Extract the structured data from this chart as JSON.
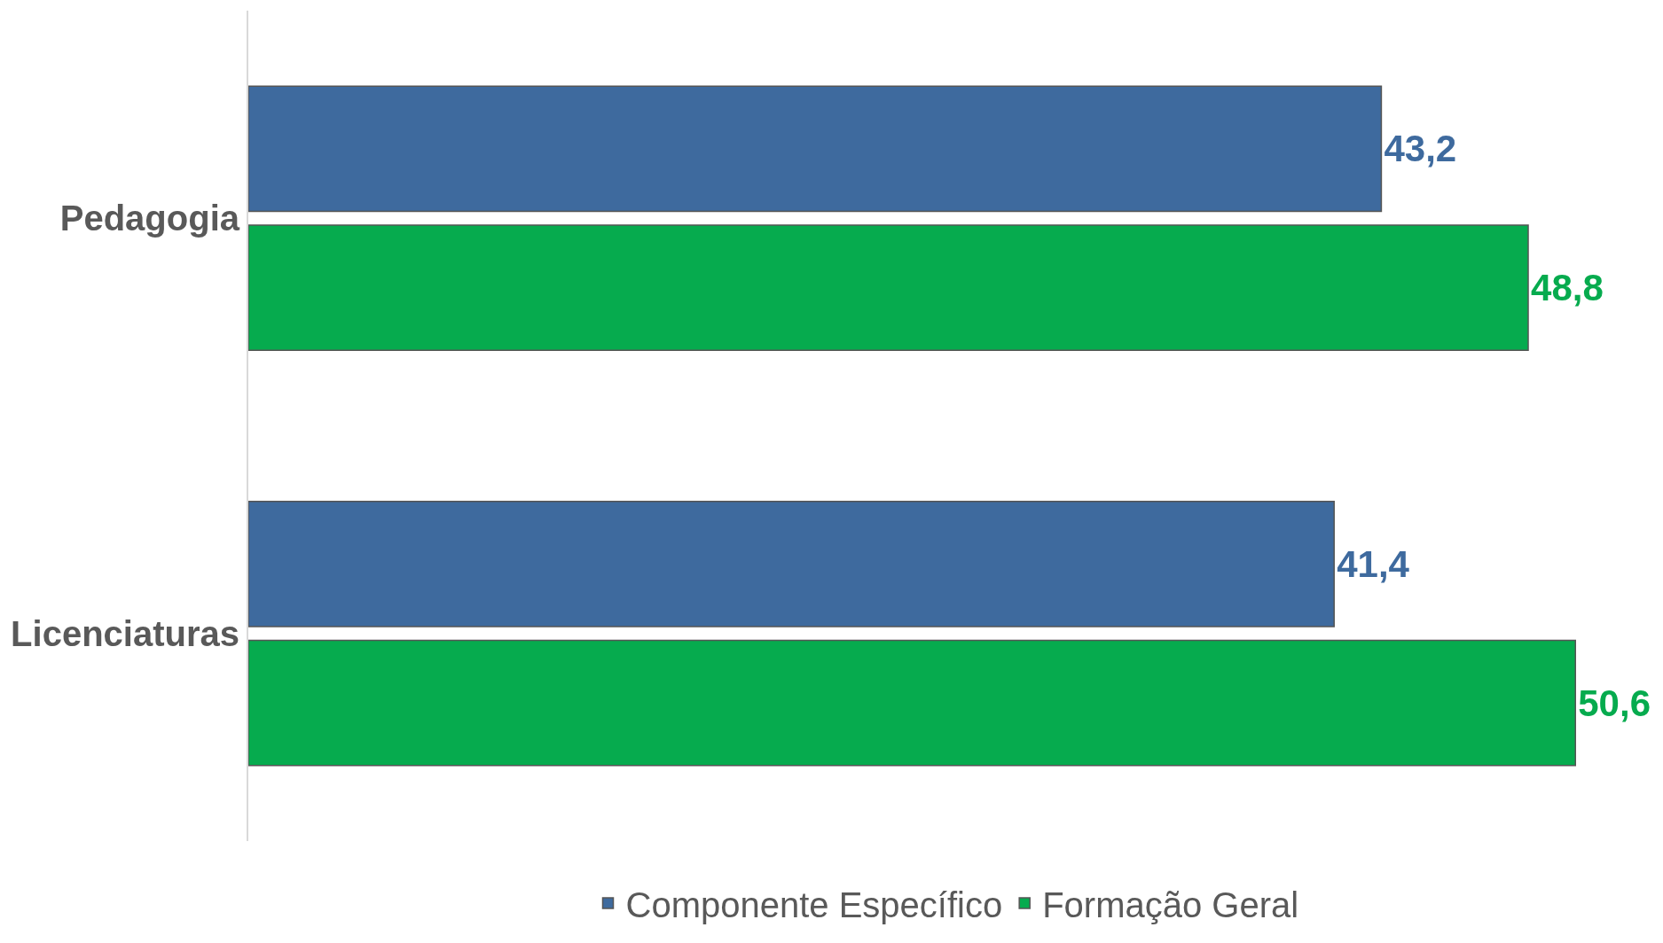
{
  "chart_data": {
    "type": "bar",
    "orientation": "horizontal",
    "categories": [
      "Pedagogia",
      "Licenciaturas"
    ],
    "series": [
      {
        "name": "Componente Específico",
        "color": "#3e6a9e",
        "values": [
          43.2,
          41.4
        ],
        "value_labels": [
          "43,2",
          "41,4"
        ]
      },
      {
        "name": "Formação Geral",
        "color": "#06ab4e",
        "values": [
          48.8,
          50.6
        ],
        "value_labels": [
          "48,8",
          "50,6"
        ]
      }
    ],
    "tick_labels": "y",
    "legend": "bottom"
  }
}
